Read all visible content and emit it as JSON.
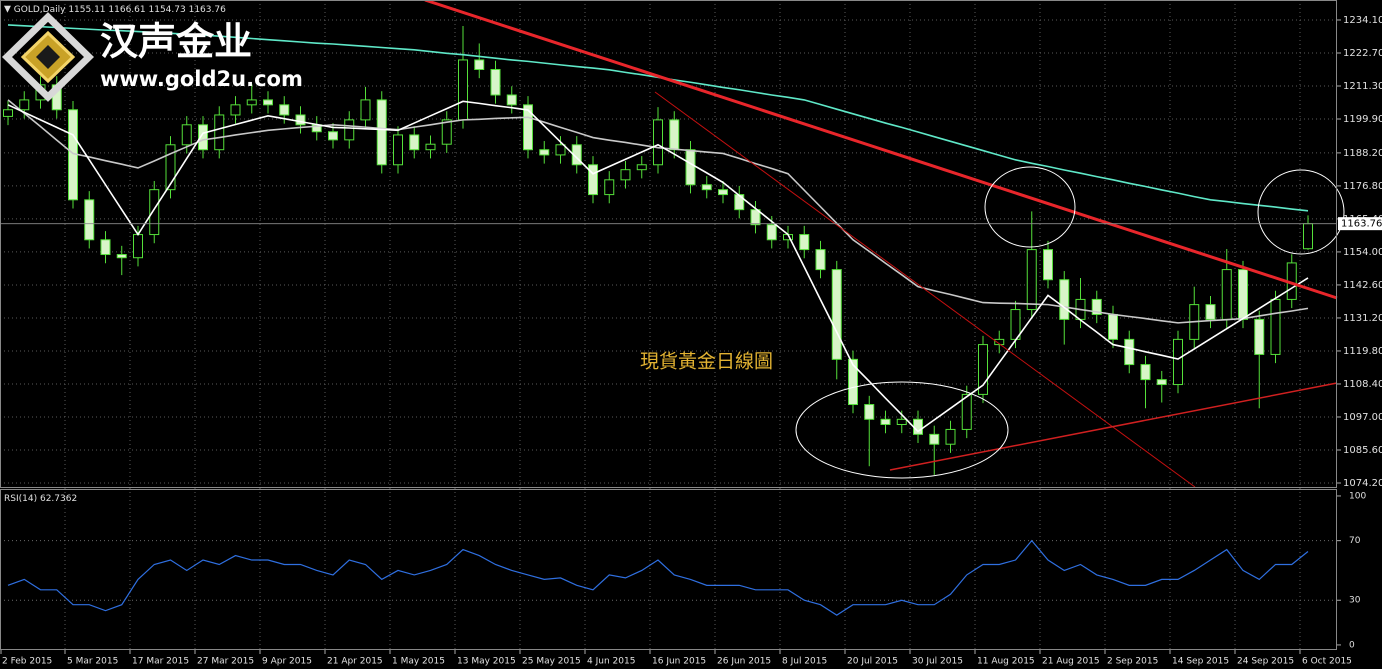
{
  "logo": {
    "name": "汉声金业",
    "url": "www.gold2u.com"
  },
  "chart_data": [
    {
      "type": "candlestick",
      "symbol": "GOLD,Daily",
      "annotation": "現貨黃金日線圖",
      "categories": [
        "2 Feb 2015",
        null,
        null,
        null,
        "5 Mar 2015",
        null,
        null,
        null,
        "17 Mar 2015",
        null,
        null,
        null,
        "27 Mar 2015",
        null,
        null,
        null,
        "9 Apr 2015",
        null,
        null,
        null,
        "21 Apr 2015",
        null,
        null,
        null,
        "1 May 2015",
        null,
        null,
        null,
        "13 May 2015",
        null,
        null,
        null,
        "25 May 2015",
        null,
        null,
        null,
        "4 Jun 2015",
        null,
        null,
        null,
        "16 Jun 2015",
        null,
        null,
        null,
        "26 Jun 2015",
        null,
        null,
        null,
        "8 Jul 2015",
        null,
        null,
        null,
        "20 Jul 2015",
        null,
        null,
        null,
        "30 Jul 2015",
        null,
        null,
        null,
        "11 Aug 2015",
        null,
        null,
        null,
        "21 Aug 2015",
        null,
        null,
        null,
        "2 Sep 2015",
        null,
        null,
        null,
        "14 Sep 2015",
        null,
        null,
        null,
        "24 Sep 2015",
        null,
        null,
        null,
        "6 Oct 2015"
      ],
      "open": [
        1200.8,
        1203.1,
        1206.5,
        1211.7,
        1203.1,
        1172.0,
        1158.2,
        1153.1,
        1152.0,
        1160.0,
        1175.5,
        1191.0,
        1197.9,
        1189.3,
        1201.3,
        1204.8,
        1206.5,
        1204.8,
        1201.3,
        1197.9,
        1195.5,
        1192.7,
        1199.6,
        1206.5,
        1184.1,
        1194.4,
        1189.3,
        1191.2,
        1199.6,
        1220.3,
        1217.0,
        1208.2,
        1204.8,
        1189.3,
        1187.5,
        1191.0,
        1184.1,
        1173.8,
        1178.9,
        1182.4,
        1184.1,
        1199.6,
        1189.3,
        1177.2,
        1175.5,
        1173.8,
        1168.6,
        1163.4,
        1158.2,
        1160.0,
        1154.8,
        1147.9,
        1116.9,
        1101.3,
        1096.2,
        1094.4,
        1096.2,
        1091.0,
        1087.6,
        1092.7,
        1104.8,
        1122.0,
        1123.8,
        1134.1,
        1154.8,
        1144.4,
        1130.7,
        1137.6,
        1132.4,
        1123.8,
        1115.1,
        1109.9,
        1108.2,
        1123.8,
        1135.8,
        1130.7,
        1147.9,
        1130.7,
        1118.6,
        1137.6,
        1155.11
      ],
      "high": [
        1206.1,
        1209.5,
        1214.7,
        1214.7,
        1206.1,
        1175.0,
        1161.2,
        1156.1,
        1163.0,
        1178.5,
        1194.0,
        1200.9,
        1200.9,
        1204.3,
        1207.8,
        1212.0,
        1209.5,
        1207.8,
        1204.3,
        1200.9,
        1198.5,
        1202.6,
        1211.0,
        1209.5,
        1197.4,
        1197.4,
        1194.2,
        1202.6,
        1232.0,
        1226.0,
        1220.0,
        1211.2,
        1207.8,
        1192.3,
        1194.0,
        1194.0,
        1187.1,
        1181.9,
        1185.4,
        1187.1,
        1204.0,
        1202.6,
        1192.3,
        1180.2,
        1178.5,
        1176.8,
        1171.6,
        1166.4,
        1163.0,
        1163.0,
        1157.8,
        1150.9,
        1119.9,
        1104.3,
        1099.2,
        1099.2,
        1099.2,
        1094.0,
        1095.7,
        1107.8,
        1125.0,
        1126.8,
        1137.1,
        1168.0,
        1157.8,
        1147.4,
        1145.0,
        1140.6,
        1135.4,
        1126.8,
        1118.1,
        1112.9,
        1126.8,
        1142.0,
        1138.8,
        1155.0,
        1150.9,
        1133.7,
        1140.6,
        1153.2,
        1166.61
      ],
      "low": [
        1197.8,
        1200.1,
        1203.5,
        1200.1,
        1169.0,
        1155.2,
        1150.1,
        1146.0,
        1149.0,
        1157.0,
        1172.5,
        1188.0,
        1186.3,
        1186.3,
        1198.3,
        1201.8,
        1201.8,
        1198.3,
        1194.9,
        1192.5,
        1189.7,
        1189.7,
        1196.6,
        1181.1,
        1181.1,
        1186.3,
        1186.3,
        1188.2,
        1196.6,
        1214.0,
        1205.2,
        1201.8,
        1186.3,
        1184.5,
        1184.5,
        1181.1,
        1170.8,
        1170.8,
        1175.9,
        1179.4,
        1181.1,
        1186.3,
        1174.2,
        1172.5,
        1170.8,
        1165.6,
        1160.4,
        1155.2,
        1155.2,
        1151.8,
        1144.9,
        1110.0,
        1098.3,
        1080.0,
        1091.4,
        1091.4,
        1088.0,
        1077.0,
        1084.6,
        1089.7,
        1101.8,
        1119.0,
        1120.8,
        1131.1,
        1141.4,
        1122.0,
        1127.7,
        1129.4,
        1120.8,
        1112.1,
        1100.0,
        1102.0,
        1105.2,
        1120.8,
        1127.7,
        1127.7,
        1127.7,
        1100.0,
        1115.6,
        1134.6,
        1154.73
      ],
      "close": [
        1203.1,
        1206.5,
        1211.7,
        1203.1,
        1172.0,
        1158.2,
        1153.1,
        1152.0,
        1160.0,
        1175.5,
        1191.0,
        1197.9,
        1189.3,
        1201.3,
        1204.8,
        1206.5,
        1204.8,
        1201.3,
        1197.9,
        1195.5,
        1192.7,
        1199.6,
        1206.5,
        1184.1,
        1194.4,
        1189.3,
        1191.2,
        1199.6,
        1220.3,
        1217.0,
        1208.2,
        1204.8,
        1189.3,
        1187.5,
        1191.0,
        1184.1,
        1173.8,
        1178.9,
        1182.4,
        1184.1,
        1199.6,
        1189.3,
        1177.2,
        1175.5,
        1173.8,
        1168.6,
        1163.4,
        1158.2,
        1160.0,
        1154.8,
        1147.9,
        1116.9,
        1101.3,
        1096.2,
        1094.4,
        1096.2,
        1091.0,
        1087.6,
        1092.7,
        1104.8,
        1122.0,
        1123.8,
        1134.1,
        1154.8,
        1144.4,
        1130.7,
        1137.6,
        1132.4,
        1123.8,
        1115.1,
        1109.9,
        1108.2,
        1123.8,
        1135.8,
        1130.7,
        1147.9,
        1130.7,
        1118.6,
        1137.6,
        1150.2,
        1163.76
      ],
      "up_color": "#000000",
      "down_color": "#d8f5c8",
      "wick_color": "#55e03a",
      "series": [
        {
          "color": "#5fe8c8",
          "values": [
            1232.4,
            1232.1,
            1231.8,
            1231.5,
            1231.2,
            1230.9,
            1230.6,
            1230.4,
            1230.1,
            1229.8,
            1229.5,
            1229.2,
            1228.9,
            1228.5,
            1228.1,
            1227.7,
            1227.3,
            1226.9,
            1226.5,
            1226.1,
            1225.8,
            1225.4,
            1225.0,
            1224.6,
            1224.2,
            1223.8,
            1223.2,
            1222.6,
            1222.1,
            1221.5,
            1220.9,
            1220.3,
            1219.8,
            1219.2,
            1218.6,
            1218.0,
            1217.5,
            1216.9,
            1216.0,
            1215.2,
            1214.3,
            1213.4,
            1212.6,
            1211.7,
            1210.8,
            1210.0,
            1209.1,
            1208.2,
            1207.4,
            1206.5,
            1204.9,
            1203.3,
            1201.7,
            1200.1,
            1198.5,
            1197.0,
            1195.4,
            1193.8,
            1192.2,
            1190.6,
            1189.0,
            1187.4,
            1185.8,
            1184.6,
            1183.5,
            1182.3,
            1181.2,
            1180.0,
            1178.9,
            1177.7,
            1176.6,
            1175.4,
            1174.3,
            1173.1,
            1172.0,
            1171.4,
            1170.7,
            1170.1,
            1169.5,
            1168.8,
            1168.2
          ]
        },
        {
          "color": "#c8c8c8",
          "values": [
            1206.5,
            1201.9,
            1197.3,
            1192.6,
            1188.0,
            1186.8,
            1185.5,
            1184.3,
            1183.0,
            1185.4,
            1187.9,
            1190.3,
            1192.7,
            1193.5,
            1194.4,
            1195.2,
            1196.0,
            1196.5,
            1197.0,
            1197.4,
            1197.9,
            1197.5,
            1197.1,
            1196.6,
            1196.2,
            1197.1,
            1197.9,
            1198.8,
            1199.6,
            1199.8,
            1200.1,
            1200.3,
            1200.5,
            1198.8,
            1197.0,
            1195.3,
            1193.5,
            1192.6,
            1191.8,
            1190.9,
            1190.0,
            1189.5,
            1189.0,
            1188.5,
            1188.0,
            1186.3,
            1184.5,
            1182.8,
            1181.0,
            1175.3,
            1169.6,
            1163.9,
            1158.2,
            1154.2,
            1150.1,
            1146.1,
            1142.0,
            1140.6,
            1139.3,
            1137.9,
            1136.5,
            1136.3,
            1136.2,
            1136.0,
            1135.8,
            1135.0,
            1134.1,
            1133.3,
            1132.4,
            1131.7,
            1131.0,
            1130.2,
            1129.5,
            1129.9,
            1130.3,
            1130.6,
            1131.0,
            1131.9,
            1132.8,
            1133.6,
            1134.5
          ]
        },
        {
          "color": "#ffffff",
          "values": [
            1204.8,
            1202.2,
            1199.6,
            1197.0,
            1194.4,
            1185.8,
            1177.2,
            1168.6,
            1160.0,
            1168.8,
            1177.5,
            1186.3,
            1195.0,
            1196.5,
            1198.0,
            1199.5,
            1201.0,
            1200.0,
            1199.0,
            1198.0,
            1197.0,
            1196.8,
            1196.5,
            1196.3,
            1196.0,
            1198.5,
            1201.0,
            1203.5,
            1206.0,
            1205.3,
            1204.5,
            1203.8,
            1203.0,
            1197.5,
            1192.0,
            1186.5,
            1181.0,
            1183.5,
            1186.0,
            1188.5,
            1191.0,
            1187.8,
            1184.5,
            1181.3,
            1178.0,
            1173.5,
            1169.0,
            1164.5,
            1160.0,
            1148.8,
            1137.5,
            1126.3,
            1115.0,
            1109.3,
            1103.5,
            1097.8,
            1092.0,
            1096.0,
            1100.0,
            1104.0,
            1108.0,
            1115.8,
            1123.5,
            1131.3,
            1139.0,
            1134.8,
            1130.5,
            1126.3,
            1122.0,
            1120.8,
            1119.5,
            1118.3,
            1117.0,
            1120.5,
            1124.0,
            1127.5,
            1131.0,
            1134.5,
            1138.0,
            1141.5,
            1145.0
          ]
        }
      ],
      "ylim": [
        1072.82,
        1241.0
      ],
      "yticks": [
        {
          "value": 1234.1,
          "label": "1234.10"
        },
        {
          "value": 1222.7,
          "label": "1222.70"
        },
        {
          "value": 1211.3,
          "label": "1211.30"
        },
        {
          "value": 1199.9,
          "label": "1199.90"
        },
        {
          "value": 1188.2,
          "label": "1188.20"
        },
        {
          "value": 1176.8,
          "label": "1176.80"
        },
        {
          "value": 1165.4,
          "label": "1165.40"
        },
        {
          "value": 1154,
          "label": "1154.00"
        },
        {
          "value": 1142.6,
          "label": "1142.60"
        },
        {
          "value": 1131.2,
          "label": "1131.20"
        },
        {
          "value": 1119.8,
          "label": "1119.80"
        },
        {
          "value": 1108.4,
          "label": "1108.40"
        },
        {
          "value": 1097,
          "label": "1097.00"
        },
        {
          "value": 1085.6,
          "label": "1085.60"
        },
        {
          "value": 1074.2,
          "label": "1074.20"
        }
      ],
      "grid": true
    },
    {
      "type": "line",
      "title": "RSI(14)",
      "color": "#2f6fe0",
      "values": [
        40,
        44,
        37,
        37,
        27,
        27,
        23,
        27,
        44,
        54,
        57,
        50,
        57,
        54,
        60,
        57,
        57,
        54,
        54,
        50,
        47,
        57,
        54,
        44,
        50,
        47,
        50,
        54,
        64,
        60,
        54,
        50,
        47,
        44,
        45,
        40,
        37,
        47,
        45,
        50,
        57,
        47,
        44,
        40,
        40,
        40,
        37,
        37,
        37,
        30,
        27,
        20,
        27,
        27,
        27,
        30,
        27,
        27,
        34,
        47,
        54,
        54,
        57,
        70,
        57,
        50,
        54,
        47,
        44,
        40,
        40,
        44,
        44,
        50,
        57,
        64,
        50,
        44,
        54,
        54,
        62.7362
      ],
      "ylim": [
        -3.4,
        104
      ],
      "yticks": [
        100,
        70,
        30,
        0
      ],
      "grid_levels": [
        70,
        30
      ]
    }
  ]
}
